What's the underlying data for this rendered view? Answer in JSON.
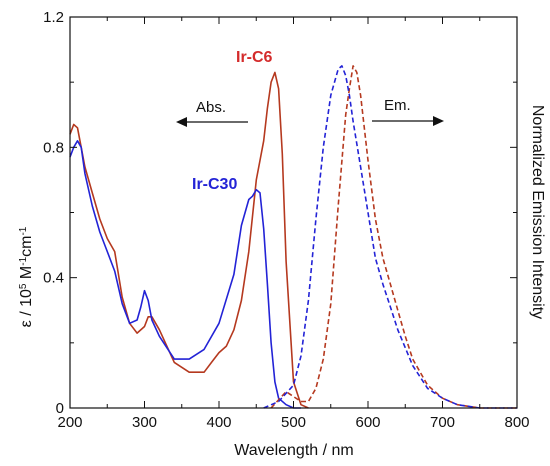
{
  "chart_data": {
    "type": "line",
    "xlabel": "Wavelength / nm",
    "ylabel_left": "ε / 10",
    "ylabel_left_sup": "5",
    "ylabel_left_unit": " M",
    "ylabel_left_sup2": "-1",
    "ylabel_left_unit2": "cm",
    "ylabel_left_sup3": "-1",
    "ylabel_right": "Normalized Emission Intensity",
    "xlim": [
      200,
      800
    ],
    "ylim": [
      0,
      1.2
    ],
    "xticks": [
      "200",
      "300",
      "400",
      "500",
      "600",
      "700",
      "800"
    ],
    "yticks": [
      "0",
      "0.4",
      "0.8",
      "1.2"
    ],
    "annotations": {
      "abs": "Abs.",
      "em": "Em.",
      "ir_c6": "Ir-C6",
      "ir_c30": "Ir-C30"
    },
    "colors": {
      "ir_c6": "#b5391f",
      "ir_c30": "#2323d6",
      "ir_c6_label": "#d42b2b"
    },
    "series": [
      {
        "name": "Ir-C6",
        "kind": "absorption",
        "style": "solid",
        "x": [
          200,
          205,
          210,
          215,
          220,
          230,
          240,
          250,
          260,
          270,
          280,
          290,
          300,
          305,
          310,
          320,
          340,
          360,
          380,
          390,
          400,
          410,
          420,
          430,
          440,
          450,
          455,
          460,
          465,
          470,
          475,
          480,
          485,
          490,
          500,
          510,
          520
        ],
        "y": [
          0.84,
          0.87,
          0.86,
          0.8,
          0.74,
          0.66,
          0.58,
          0.52,
          0.48,
          0.34,
          0.26,
          0.23,
          0.25,
          0.28,
          0.28,
          0.24,
          0.14,
          0.11,
          0.11,
          0.14,
          0.17,
          0.19,
          0.24,
          0.33,
          0.48,
          0.7,
          0.76,
          0.82,
          0.92,
          1.0,
          1.03,
          0.98,
          0.78,
          0.45,
          0.08,
          0.01,
          0
        ]
      },
      {
        "name": "Ir-C30",
        "kind": "absorption",
        "style": "solid",
        "x": [
          200,
          205,
          210,
          215,
          220,
          230,
          240,
          250,
          260,
          270,
          280,
          290,
          295,
          300,
          305,
          310,
          320,
          340,
          360,
          380,
          400,
          420,
          430,
          440,
          445,
          450,
          455,
          460,
          465,
          470,
          475,
          480,
          490,
          500,
          510
        ],
        "y": [
          0.77,
          0.8,
          0.82,
          0.8,
          0.72,
          0.62,
          0.54,
          0.48,
          0.42,
          0.32,
          0.26,
          0.27,
          0.31,
          0.36,
          0.33,
          0.27,
          0.22,
          0.15,
          0.15,
          0.18,
          0.26,
          0.41,
          0.56,
          0.64,
          0.65,
          0.67,
          0.66,
          0.55,
          0.38,
          0.2,
          0.08,
          0.03,
          0.01,
          0,
          0
        ]
      },
      {
        "name": "Ir-C6",
        "kind": "emission",
        "style": "dashed",
        "x": [
          470,
          490,
          510,
          520,
          530,
          540,
          550,
          560,
          570,
          575,
          580,
          585,
          590,
          600,
          610,
          620,
          630,
          640,
          650,
          660,
          680,
          700,
          720,
          750,
          800
        ],
        "y": [
          0,
          0.05,
          0.02,
          0.02,
          0.06,
          0.15,
          0.32,
          0.62,
          0.9,
          0.98,
          1.05,
          1.03,
          0.96,
          0.76,
          0.58,
          0.46,
          0.38,
          0.3,
          0.22,
          0.15,
          0.07,
          0.03,
          0.01,
          0,
          0
        ]
      },
      {
        "name": "Ir-C30",
        "kind": "emission",
        "style": "dashed",
        "x": [
          460,
          480,
          500,
          510,
          520,
          530,
          540,
          550,
          560,
          565,
          570,
          575,
          580,
          590,
          600,
          610,
          620,
          630,
          640,
          660,
          680,
          700,
          720,
          750,
          800
        ],
        "y": [
          0,
          0.02,
          0.07,
          0.16,
          0.33,
          0.58,
          0.8,
          0.96,
          1.04,
          1.05,
          1.02,
          0.96,
          0.88,
          0.74,
          0.6,
          0.46,
          0.38,
          0.31,
          0.24,
          0.13,
          0.06,
          0.03,
          0.01,
          0,
          0
        ]
      }
    ]
  }
}
